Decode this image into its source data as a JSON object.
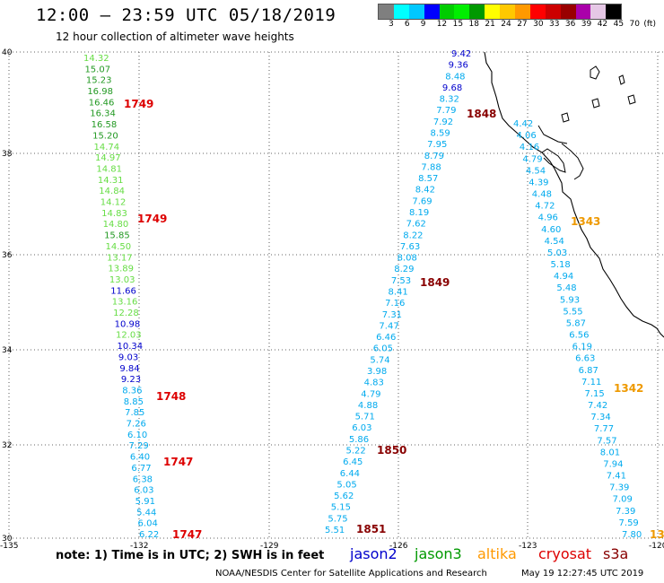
{
  "header": {
    "title": "12:00 – 23:59 UTC 05/18/2019",
    "subtitle": "12 hour collection of altimeter wave heights"
  },
  "legend": {
    "colors": [
      "#7f7f7f",
      "#00ffff",
      "#00c8ff",
      "#0000ff",
      "#00cc00",
      "#00ee00",
      "#009900",
      "#ffff00",
      "#ffc800",
      "#ff9900",
      "#ff0000",
      "#cc0000",
      "#990000",
      "#aa00aa",
      "#e6c8e6",
      "#000000"
    ],
    "labels": [
      "3",
      "6",
      "9",
      "12",
      "15",
      "18",
      "21",
      "24",
      "27",
      "30",
      "33",
      "36",
      "39",
      "42",
      "45",
      "70",
      "(ft)"
    ]
  },
  "map": {
    "lat_ticks": [
      "40",
      "38",
      "36",
      "34",
      "32",
      "30"
    ],
    "lon_ticks": [
      "-135",
      "-132",
      "-129",
      "-126",
      "-123",
      "-120"
    ],
    "lat_range": [
      30,
      40
    ],
    "lon_range": [
      -135,
      -120
    ]
  },
  "passes": [
    {
      "name": "jason3_1749",
      "values": [
        {
          "text": "14.32",
          "color": "#66dd44"
        },
        {
          "text": "15.07",
          "color": "#229922"
        },
        {
          "text": "15.23",
          "color": "#229922"
        },
        {
          "text": "16.98",
          "color": "#229922"
        },
        {
          "text": "16.46",
          "color": "#229922"
        },
        {
          "text": "16.34",
          "color": "#229922"
        },
        {
          "text": "16.58",
          "color": "#229922"
        },
        {
          "text": "15.20",
          "color": "#229922"
        },
        {
          "text": "14.74",
          "color": "#66dd44"
        },
        {
          "text": "14.97",
          "color": "#66dd44"
        },
        {
          "text": "14.81",
          "color": "#66dd44"
        },
        {
          "text": "14.31",
          "color": "#66dd44"
        },
        {
          "text": "14.84",
          "color": "#66dd44"
        },
        {
          "text": "14.12",
          "color": "#66dd44"
        },
        {
          "text": "14.83",
          "color": "#66dd44"
        },
        {
          "text": "14.80",
          "color": "#66dd44"
        },
        {
          "text": "15.85",
          "color": "#229922"
        },
        {
          "text": "14.50",
          "color": "#66dd44"
        },
        {
          "text": "13.17",
          "color": "#66dd44"
        },
        {
          "text": "13.89",
          "color": "#66dd44"
        },
        {
          "text": "13.03",
          "color": "#66dd44"
        },
        {
          "text": "11.66",
          "color": "#0000cc"
        },
        {
          "text": "13.16",
          "color": "#66dd44"
        },
        {
          "text": "12.28",
          "color": "#66dd44"
        },
        {
          "text": "10.98",
          "color": "#0000cc"
        },
        {
          "text": "12.03",
          "color": "#66dd44"
        },
        {
          "text": "10.34",
          "color": "#0000cc"
        },
        {
          "text": "9.03",
          "color": "#0000cc"
        },
        {
          "text": "9.84",
          "color": "#0000cc"
        },
        {
          "text": "9.23",
          "color": "#0000cc"
        },
        {
          "text": "8.36",
          "color": "#00aaee"
        },
        {
          "text": "8.85",
          "color": "#00aaee"
        },
        {
          "text": "7.85",
          "color": "#00aaee"
        },
        {
          "text": "7.26",
          "color": "#00aaee"
        },
        {
          "text": "6.10",
          "color": "#00aaee"
        },
        {
          "text": "7.29",
          "color": "#00aaee"
        },
        {
          "text": "6.40",
          "color": "#00aaee"
        },
        {
          "text": "6.77",
          "color": "#00aaee"
        },
        {
          "text": "6.38",
          "color": "#00aaee"
        },
        {
          "text": "6.03",
          "color": "#00aaee"
        },
        {
          "text": "5.91",
          "color": "#00aaee"
        },
        {
          "text": "5.44",
          "color": "#00aaee"
        },
        {
          "text": "6.04",
          "color": "#00aaee"
        },
        {
          "text": "6.22",
          "color": "#00aaee"
        }
      ]
    },
    {
      "name": "jason2_north_1848",
      "values": [
        {
          "text": "9.42",
          "color": "#0000cc"
        },
        {
          "text": "9.36",
          "color": "#0000cc"
        },
        {
          "text": "8.48",
          "color": "#00aaee"
        },
        {
          "text": "9.68",
          "color": "#0000cc"
        },
        {
          "text": "8.32",
          "color": "#00aaee"
        },
        {
          "text": "7.79",
          "color": "#00aaee"
        },
        {
          "text": "7.92",
          "color": "#00aaee"
        },
        {
          "text": "8.59",
          "color": "#00aaee"
        },
        {
          "text": "7.95",
          "color": "#00aaee"
        },
        {
          "text": "8.79",
          "color": "#00aaee"
        },
        {
          "text": "7.88",
          "color": "#00aaee"
        },
        {
          "text": "8.57",
          "color": "#00aaee"
        },
        {
          "text": "8.42",
          "color": "#00aaee"
        },
        {
          "text": "7.69",
          "color": "#00aaee"
        },
        {
          "text": "8.19",
          "color": "#00aaee"
        },
        {
          "text": "7.62",
          "color": "#00aaee"
        },
        {
          "text": "8.22",
          "color": "#00aaee"
        },
        {
          "text": "7.63",
          "color": "#00aaee"
        },
        {
          "text": "8.08",
          "color": "#00aaee"
        },
        {
          "text": "8.29",
          "color": "#00aaee"
        },
        {
          "text": "7.53",
          "color": "#00aaee"
        },
        {
          "text": "8.41",
          "color": "#00aaee"
        },
        {
          "text": "7.16",
          "color": "#00aaee"
        },
        {
          "text": "7.31",
          "color": "#00aaee"
        },
        {
          "text": "7.47",
          "color": "#00aaee"
        },
        {
          "text": "6.46",
          "color": "#00aaee"
        },
        {
          "text": "6.05",
          "color": "#00aaee"
        },
        {
          "text": "5.74",
          "color": "#00aaee"
        },
        {
          "text": "3.98",
          "color": "#00aaee"
        },
        {
          "text": "4.83",
          "color": "#00aaee"
        },
        {
          "text": "4.79",
          "color": "#00aaee"
        },
        {
          "text": "4.88",
          "color": "#00aaee"
        },
        {
          "text": "5.71",
          "color": "#00aaee"
        },
        {
          "text": "6.03",
          "color": "#00aaee"
        },
        {
          "text": "5.86",
          "color": "#00aaee"
        },
        {
          "text": "5.22",
          "color": "#00aaee"
        },
        {
          "text": "6.45",
          "color": "#00aaee"
        },
        {
          "text": "6.44",
          "color": "#00aaee"
        },
        {
          "text": "5.05",
          "color": "#00aaee"
        },
        {
          "text": "5.62",
          "color": "#00aaee"
        },
        {
          "text": "5.15",
          "color": "#00aaee"
        },
        {
          "text": "5.75",
          "color": "#00aaee"
        },
        {
          "text": "5.51",
          "color": "#00aaee"
        }
      ]
    },
    {
      "name": "jason2_south_1342",
      "values": [
        {
          "text": "4.42",
          "color": "#00aaee"
        },
        {
          "text": "4.06",
          "color": "#00aaee"
        },
        {
          "text": "4.16",
          "color": "#00aaee"
        },
        {
          "text": "4.79",
          "color": "#00aaee"
        },
        {
          "text": "4.54",
          "color": "#00aaee"
        },
        {
          "text": "4.39",
          "color": "#00aaee"
        },
        {
          "text": "4.48",
          "color": "#00aaee"
        },
        {
          "text": "4.72",
          "color": "#00aaee"
        },
        {
          "text": "4.96",
          "color": "#00aaee"
        },
        {
          "text": "4.60",
          "color": "#00aaee"
        },
        {
          "text": "4.54",
          "color": "#00aaee"
        },
        {
          "text": "5.03",
          "color": "#00aaee"
        },
        {
          "text": "5.18",
          "color": "#00aaee"
        },
        {
          "text": "4.94",
          "color": "#00aaee"
        },
        {
          "text": "5.48",
          "color": "#00aaee"
        },
        {
          "text": "5.93",
          "color": "#00aaee"
        },
        {
          "text": "5.55",
          "color": "#00aaee"
        },
        {
          "text": "5.87",
          "color": "#00aaee"
        },
        {
          "text": "6.56",
          "color": "#00aaee"
        },
        {
          "text": "6.19",
          "color": "#00aaee"
        },
        {
          "text": "6.63",
          "color": "#00aaee"
        },
        {
          "text": "6.87",
          "color": "#00aaee"
        },
        {
          "text": "7.11",
          "color": "#00aaee"
        },
        {
          "text": "7.15",
          "color": "#00aaee"
        },
        {
          "text": "7.42",
          "color": "#00aaee"
        },
        {
          "text": "7.34",
          "color": "#00aaee"
        },
        {
          "text": "7.77",
          "color": "#00aaee"
        },
        {
          "text": "7.57",
          "color": "#00aaee"
        },
        {
          "text": "8.01",
          "color": "#00aaee"
        },
        {
          "text": "7.94",
          "color": "#00aaee"
        },
        {
          "text": "7.41",
          "color": "#00aaee"
        },
        {
          "text": "7.39",
          "color": "#00aaee"
        },
        {
          "text": "7.09",
          "color": "#00aaee"
        },
        {
          "text": "7.39",
          "color": "#00aaee"
        },
        {
          "text": "7.59",
          "color": "#00aaee"
        },
        {
          "text": "7.80",
          "color": "#00aaee"
        }
      ]
    }
  ],
  "time_labels": [
    {
      "text": "1749",
      "color": "#dd0000"
    },
    {
      "text": "1749",
      "color": "#dd0000"
    },
    {
      "text": "1748",
      "color": "#dd0000"
    },
    {
      "text": "1747",
      "color": "#dd0000"
    },
    {
      "text": "1747",
      "color": "#dd0000"
    },
    {
      "text": "1848",
      "color": "#880000"
    },
    {
      "text": "1849",
      "color": "#880000"
    },
    {
      "text": "1850",
      "color": "#880000"
    },
    {
      "text": "1851",
      "color": "#880000"
    },
    {
      "text": "1343",
      "color": "#ee9900"
    },
    {
      "text": "1342",
      "color": "#ee9900"
    },
    {
      "text": "13",
      "color": "#ee9900"
    }
  ],
  "footer": {
    "note": "note:  1) Time is in UTC;  2) SWH is in feet",
    "satellites": [
      {
        "text": "jason2",
        "color": "#0000cc"
      },
      {
        "text": "jason3",
        "color": "#009900"
      },
      {
        "text": "altika",
        "color": "#ff9900"
      },
      {
        "text": "cryosat",
        "color": "#dd0000"
      },
      {
        "text": "s3a",
        "color": "#880000"
      }
    ],
    "credit": "NOAA/NESDIS Center for Satellite Applications and Research",
    "generated": "May 19 12:27:45 UTC 2019"
  }
}
